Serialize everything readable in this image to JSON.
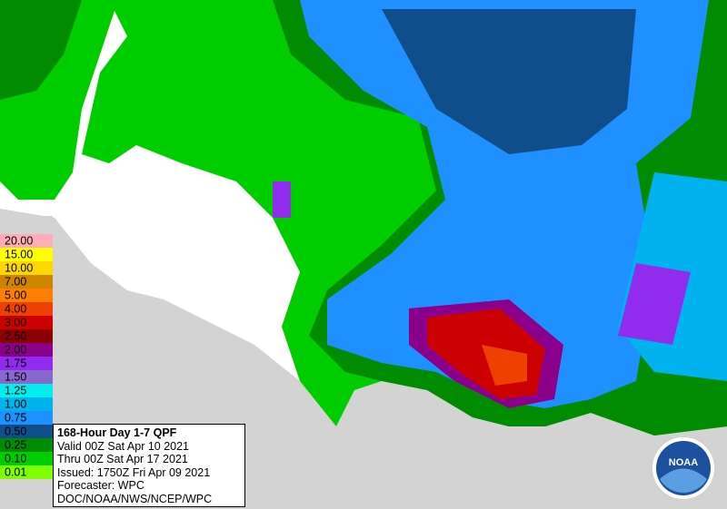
{
  "legend": {
    "items": [
      {
        "label": "20.00",
        "color": "#ffaeb9"
      },
      {
        "label": "15.00",
        "color": "#ffff00"
      },
      {
        "label": "10.00",
        "color": "#ffd700"
      },
      {
        "label": "7.00",
        "color": "#cd8500"
      },
      {
        "label": "5.00",
        "color": "#ff7f00"
      },
      {
        "label": "4.00",
        "color": "#ee4000"
      },
      {
        "label": "3.00",
        "color": "#cd0000"
      },
      {
        "label": "2.50",
        "color": "#8b0000"
      },
      {
        "label": "2.00",
        "color": "#8b008b"
      },
      {
        "label": "1.75",
        "color": "#912cee"
      },
      {
        "label": "1.50",
        "color": "#8968cd"
      },
      {
        "label": "1.25",
        "color": "#00eeee"
      },
      {
        "label": "1.00",
        "color": "#00b2ee"
      },
      {
        "label": "0.75",
        "color": "#1e90ff"
      },
      {
        "label": "0.50",
        "color": "#104e8b"
      },
      {
        "label": "0.25",
        "color": "#008b00"
      },
      {
        "label": "0.10",
        "color": "#00cd00"
      },
      {
        "label": "0.01",
        "color": "#7fff00"
      }
    ]
  },
  "info": {
    "title": "168-Hour Day 1-7 QPF",
    "lines": [
      "Valid 00Z Sat Apr 10 2021",
      "Thru 00Z Sat Apr 17 2021",
      "Issued: 1750Z Fri Apr 09 2021",
      "Forecaster: WPC",
      "DOC/NOAA/NWS/NCEP/WPC"
    ]
  },
  "logo": {
    "text": "NOAA"
  }
}
